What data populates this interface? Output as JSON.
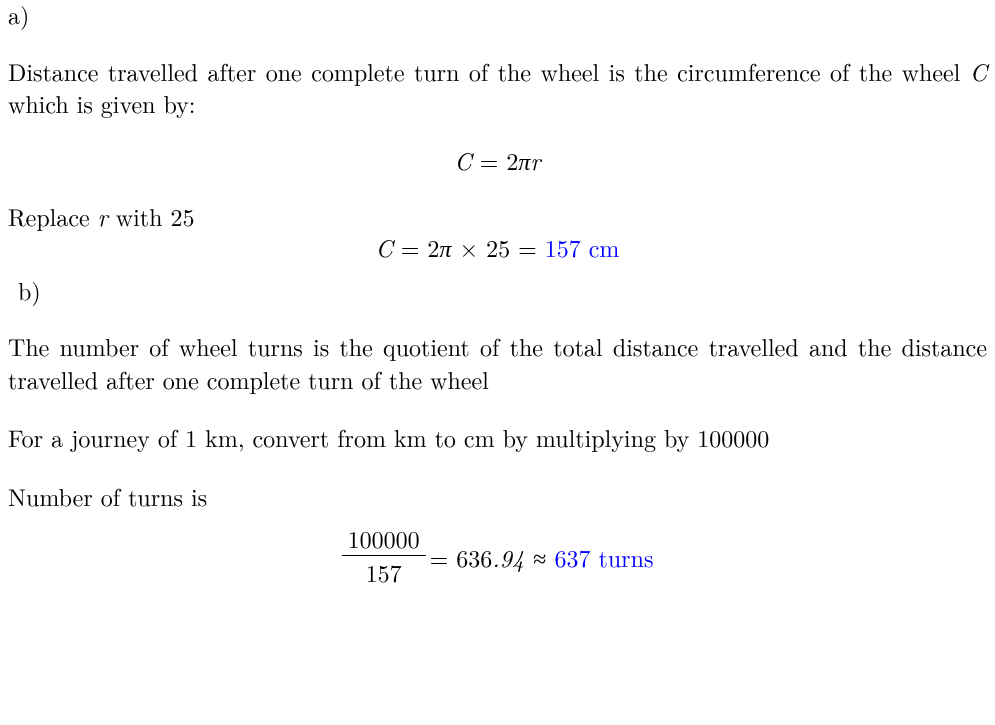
{
  "labels": {
    "a": "a)",
    "b": "b)"
  },
  "partA": {
    "intro_pre": "Distance travelled after one complete turn of the wheel is the circumference of the wheel ",
    "intro_var": "C",
    "intro_post": " which is given by:",
    "formula": {
      "lhs_var": "C",
      "eq": " = 2",
      "pi": "π",
      "r": "r"
    },
    "replace_pre": "Replace ",
    "replace_var": "r",
    "replace_post": " with 25",
    "calc": {
      "lhs_var": "C",
      "mid": " = 2",
      "pi": "π",
      "times": " × 25 = ",
      "answer": "157 cm"
    }
  },
  "partB": {
    "intro": "The number of wheel turns is the quotient of the total distance travelled and the distance travelled after one complete turn of the wheel",
    "convert": "For a journey of 1 km, convert from km to cm by multiplying by 100000",
    "turns_label": "Number of turns is",
    "frac": {
      "num": "100000",
      "den": "157",
      "eq": " = 636",
      "decimal": ".94 ≈ ",
      "answer": "637 turns"
    }
  },
  "style": {
    "answer_color": "#0000ff",
    "text_color": "#000000",
    "background": "#ffffff",
    "font_size_pt": 18,
    "frac_rule_width": 1.2
  }
}
